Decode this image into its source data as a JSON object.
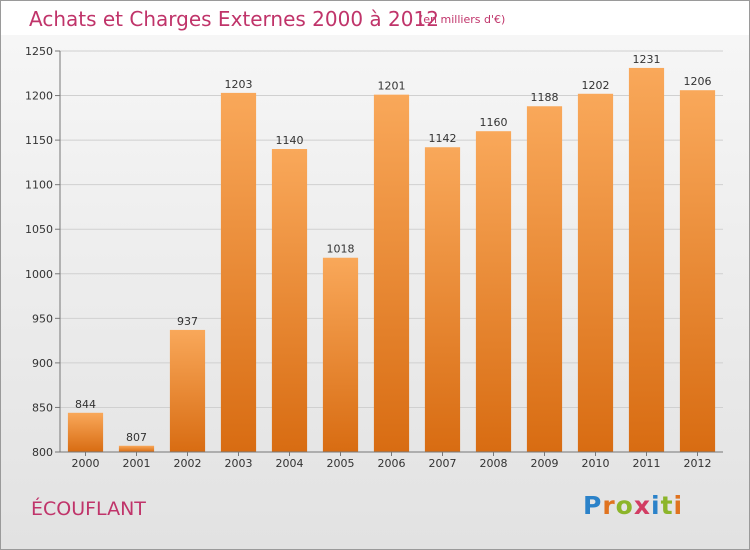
{
  "header": {
    "title": "Achats et Charges Externes 2000 à 2012",
    "subtitle": "(en milliers d'€)"
  },
  "footer": {
    "commune": "ÉCOUFLANT",
    "logo": [
      "P",
      "r",
      "o",
      "x",
      "i",
      "t",
      "i"
    ]
  },
  "colors": {
    "bar_light": "#f9a85a",
    "bar_dark": "#d86c12",
    "title": "#c0346a",
    "text": "#333333"
  },
  "chart_data": {
    "type": "bar",
    "categories": [
      "2000",
      "2001",
      "2002",
      "2003",
      "2004",
      "2005",
      "2006",
      "2007",
      "2008",
      "2009",
      "2010",
      "2011",
      "2012"
    ],
    "values": [
      844,
      807,
      937,
      1203,
      1140,
      1018,
      1201,
      1142,
      1160,
      1188,
      1202,
      1231,
      1206
    ],
    "yticks": [
      800,
      850,
      900,
      950,
      1000,
      1050,
      1100,
      1150,
      1200,
      1250
    ],
    "ylim": [
      800,
      1250
    ],
    "grid": true,
    "legend": "none"
  }
}
